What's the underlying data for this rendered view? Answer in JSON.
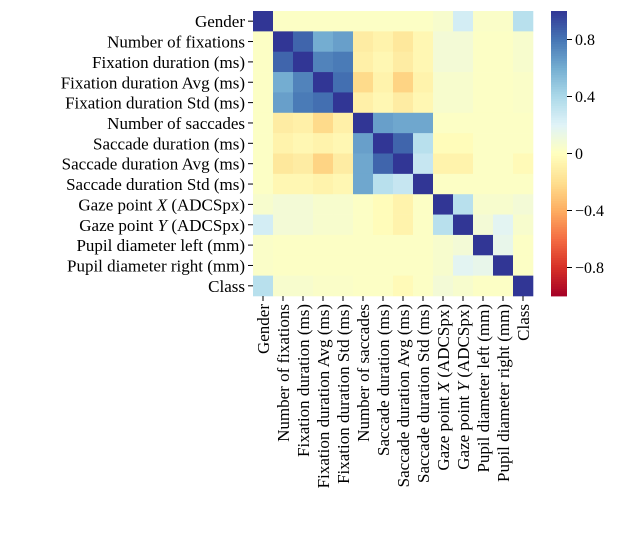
{
  "chart_data": {
    "type": "heatmap",
    "title": "",
    "xlabel": "",
    "ylabel": "",
    "labels": [
      "Gender",
      "Number of fixations",
      "Fixation duration (ms)",
      "Fixation duration Avg (ms)",
      "Fixation duration Std (ms)",
      "Number of saccades",
      "Saccade duration (ms)",
      "Saccade duration Avg (ms)",
      "Saccade duration Std (ms)",
      "Gaze point X (ADCSpx)",
      "Gaze point Y (ADCSpx)",
      "Pupil diameter left (mm)",
      "Pupil diameter right (mm)",
      "Class"
    ],
    "matrix": [
      [
        1.0,
        0.02,
        0.02,
        0.02,
        0.02,
        0.02,
        0.02,
        0.02,
        0.02,
        0.05,
        0.25,
        0.03,
        0.03,
        0.35
      ],
      [
        0.02,
        1.0,
        0.85,
        0.6,
        0.65,
        -0.12,
        -0.08,
        -0.15,
        -0.05,
        0.08,
        0.08,
        0.02,
        0.02,
        0.05
      ],
      [
        0.02,
        0.85,
        1.0,
        0.75,
        0.78,
        -0.1,
        -0.05,
        -0.12,
        -0.05,
        0.08,
        0.08,
        0.02,
        0.02,
        0.05
      ],
      [
        0.02,
        0.6,
        0.75,
        1.0,
        0.82,
        -0.22,
        -0.08,
        -0.25,
        -0.08,
        0.05,
        0.05,
        0.02,
        0.02,
        0.03
      ],
      [
        0.02,
        0.65,
        0.78,
        0.82,
        1.0,
        -0.1,
        -0.05,
        -0.12,
        -0.05,
        0.05,
        0.05,
        0.02,
        0.02,
        0.03
      ],
      [
        0.02,
        -0.12,
        -0.1,
        -0.22,
        -0.1,
        1.0,
        0.65,
        0.62,
        0.62,
        0.02,
        0.02,
        0.02,
        0.02,
        0.02
      ],
      [
        0.02,
        -0.08,
        -0.05,
        -0.08,
        -0.05,
        0.65,
        1.0,
        0.85,
        0.35,
        -0.02,
        -0.02,
        0.02,
        0.02,
        0.02
      ],
      [
        0.02,
        -0.15,
        -0.12,
        -0.25,
        -0.12,
        0.62,
        0.85,
        1.0,
        0.3,
        -0.08,
        -0.08,
        0.02,
        0.02,
        -0.03
      ],
      [
        0.02,
        -0.05,
        -0.05,
        -0.08,
        -0.05,
        0.62,
        0.35,
        0.3,
        1.0,
        0.02,
        0.02,
        0.02,
        0.02,
        0.02
      ],
      [
        0.05,
        0.08,
        0.08,
        0.05,
        0.05,
        0.02,
        -0.02,
        -0.08,
        0.02,
        1.0,
        0.35,
        0.05,
        0.05,
        0.08
      ],
      [
        0.25,
        0.08,
        0.08,
        0.05,
        0.05,
        0.02,
        -0.02,
        -0.08,
        0.02,
        0.35,
        1.0,
        0.08,
        0.18,
        0.05
      ],
      [
        0.03,
        0.02,
        0.02,
        0.02,
        0.02,
        0.02,
        0.02,
        0.02,
        0.02,
        0.05,
        0.08,
        1.0,
        0.15,
        0.02
      ],
      [
        0.03,
        0.02,
        0.02,
        0.02,
        0.02,
        0.02,
        0.02,
        0.02,
        0.02,
        0.05,
        0.18,
        0.15,
        1.0,
        0.02
      ],
      [
        0.35,
        0.05,
        0.05,
        0.03,
        0.03,
        0.02,
        0.02,
        -0.03,
        0.02,
        0.08,
        0.05,
        0.02,
        0.02,
        1.0
      ]
    ],
    "colorbar": {
      "range": [
        -1.0,
        1.0
      ],
      "ticks": [
        0.8,
        0.4,
        0,
        -0.4,
        -0.8
      ],
      "tick_labels": [
        "0.8",
        "0.4",
        "0",
        "−0.4",
        "−0.8"
      ],
      "colormap": "RdYlBu",
      "colors": [
        "#a50026",
        "#d73027",
        "#f46d43",
        "#fdae61",
        "#fee090",
        "#ffffbf",
        "#e0f3f8",
        "#abd9e9",
        "#74add1",
        "#4575b4",
        "#313695"
      ]
    },
    "grid": false
  }
}
